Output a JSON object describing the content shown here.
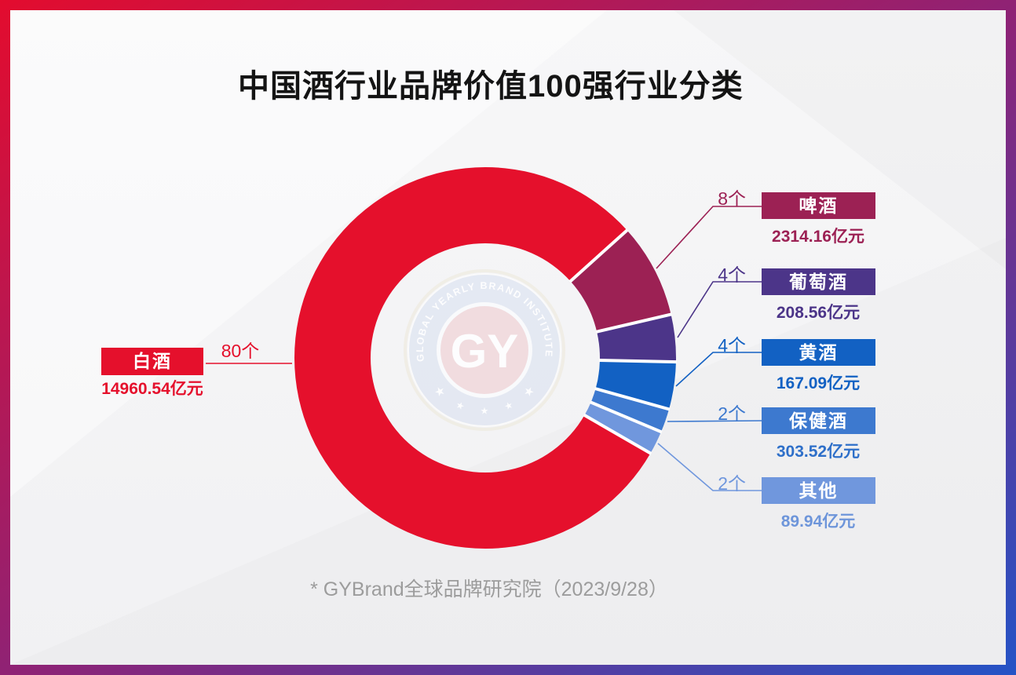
{
  "page": {
    "title": "中国酒行业品牌价值100强行业分类",
    "footnote": "* GYBrand全球品牌研究院（2023/9/28）"
  },
  "watermark": {
    "ring_text": "GLOBAL YEARLY BRAND INSTITUTE",
    "monogram": "GY"
  },
  "frame_colors": {
    "top_left": "#e30c2e",
    "middle": "#8c2377",
    "bottom_right": "#2453c6"
  },
  "chart_data": {
    "type": "pie",
    "subtype": "donut",
    "title": "中国酒行业品牌价值100强行业分类",
    "count_unit": "个",
    "value_unit": "亿元",
    "total_count": 100,
    "start_angle_deg": 42,
    "direction": "clockwise",
    "series": [
      {
        "label": "白酒",
        "count": 80,
        "count_label": "80个",
        "value": 14960.54,
        "value_label": "14960.54亿元",
        "color": "#e5102c",
        "side": "left"
      },
      {
        "label": "啤酒",
        "count": 8,
        "count_label": "8个",
        "value": 2314.16,
        "value_label": "2314.16亿元",
        "color": "#9c2154",
        "side": "right"
      },
      {
        "label": "葡萄酒",
        "count": 4,
        "count_label": "4个",
        "value": 208.56,
        "value_label": "208.56亿元",
        "color": "#4c3589",
        "side": "right"
      },
      {
        "label": "黄酒",
        "count": 4,
        "count_label": "4个",
        "value": 167.09,
        "value_label": "167.09亿元",
        "color": "#1261c3",
        "side": "right"
      },
      {
        "label": "保健酒",
        "count": 2,
        "count_label": "2个",
        "value": 303.52,
        "value_label": "303.52亿元",
        "color": "#3d79cf",
        "value_color": "#2e6fc9",
        "side": "right"
      },
      {
        "label": "其他",
        "count": 2,
        "count_label": "2个",
        "value": 89.94,
        "value_label": "89.94亿元",
        "color": "#7097dd",
        "value_color": "#6d95da",
        "side": "right"
      }
    ]
  }
}
